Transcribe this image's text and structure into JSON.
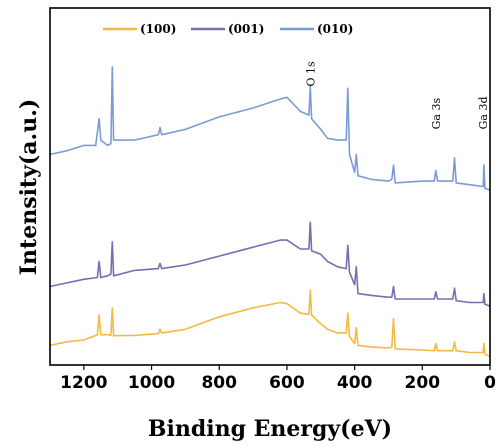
{
  "chart_data": {
    "type": "line",
    "xlabel": "Binding Energy(eV)",
    "ylabel": "Intensity(a.u.)",
    "xlim": [
      1300,
      0
    ],
    "ylim": [
      0,
      100
    ],
    "x_ticks": [
      1200,
      1000,
      800,
      600,
      400,
      200,
      0
    ],
    "y_ticks": [],
    "grid": false,
    "legend": "top-left",
    "annotations": [
      {
        "text": "O 1s",
        "x": 531,
        "y": 78
      },
      {
        "text": "Ga 3s",
        "x": 160,
        "y": 66
      },
      {
        "text": "Ga 3d",
        "x": 20,
        "y": 66
      }
    ],
    "series": [
      {
        "name": "(100)",
        "color": "#F5B942",
        "points": [
          [
            1300,
            5.5
          ],
          [
            1250,
            6.5
          ],
          [
            1200,
            7
          ],
          [
            1160,
            8.5
          ],
          [
            1155,
            14
          ],
          [
            1150,
            8.5
          ],
          [
            1130,
            8.5
          ],
          [
            1120,
            8.3
          ],
          [
            1116,
            16
          ],
          [
            1112,
            8.2
          ],
          [
            1050,
            8.3
          ],
          [
            980,
            8.8
          ],
          [
            975,
            10
          ],
          [
            970,
            9
          ],
          [
            900,
            10
          ],
          [
            800,
            13.5
          ],
          [
            700,
            16
          ],
          [
            620,
            17.5
          ],
          [
            600,
            17.2
          ],
          [
            560,
            14.5
          ],
          [
            535,
            14.2
          ],
          [
            531,
            21
          ],
          [
            527,
            14
          ],
          [
            500,
            11.5
          ],
          [
            480,
            10
          ],
          [
            450,
            9
          ],
          [
            425,
            9
          ],
          [
            420,
            14.5
          ],
          [
            415,
            8
          ],
          [
            400,
            6
          ],
          [
            395,
            10.5
          ],
          [
            390,
            5.5
          ],
          [
            350,
            5
          ],
          [
            300,
            4.8
          ],
          [
            290,
            5
          ],
          [
            285,
            13
          ],
          [
            280,
            4.5
          ],
          [
            200,
            4.2
          ],
          [
            165,
            4
          ],
          [
            160,
            6
          ],
          [
            155,
            4
          ],
          [
            110,
            4
          ],
          [
            105,
            6.5
          ],
          [
            100,
            4
          ],
          [
            60,
            3.5
          ],
          [
            20,
            3.5
          ],
          [
            18,
            6
          ],
          [
            15,
            3
          ],
          [
            0,
            2.5
          ]
        ]
      },
      {
        "name": "(001)",
        "color": "#7B6BB0",
        "points": [
          [
            1300,
            22
          ],
          [
            1250,
            23
          ],
          [
            1200,
            24
          ],
          [
            1160,
            24.5
          ],
          [
            1155,
            29
          ],
          [
            1150,
            24.5
          ],
          [
            1130,
            25
          ],
          [
            1120,
            25.5
          ],
          [
            1116,
            34.5
          ],
          [
            1112,
            25
          ],
          [
            1050,
            26.5
          ],
          [
            980,
            27
          ],
          [
            975,
            28.5
          ],
          [
            970,
            27
          ],
          [
            900,
            28
          ],
          [
            800,
            30.5
          ],
          [
            700,
            33
          ],
          [
            620,
            35
          ],
          [
            600,
            35
          ],
          [
            560,
            32.5
          ],
          [
            535,
            32.5
          ],
          [
            531,
            40
          ],
          [
            527,
            32
          ],
          [
            500,
            31
          ],
          [
            480,
            29
          ],
          [
            450,
            27.5
          ],
          [
            425,
            27
          ],
          [
            420,
            33.5
          ],
          [
            415,
            26
          ],
          [
            400,
            22.5
          ],
          [
            395,
            27.5
          ],
          [
            390,
            20
          ],
          [
            350,
            19.5
          ],
          [
            300,
            19
          ],
          [
            290,
            19
          ],
          [
            285,
            22
          ],
          [
            280,
            18.5
          ],
          [
            200,
            18.5
          ],
          [
            165,
            18.5
          ],
          [
            160,
            20.5
          ],
          [
            155,
            18.5
          ],
          [
            110,
            18.5
          ],
          [
            105,
            21.5
          ],
          [
            100,
            18
          ],
          [
            60,
            17.5
          ],
          [
            20,
            17.5
          ],
          [
            18,
            20
          ],
          [
            15,
            17
          ],
          [
            0,
            16.5
          ]
        ]
      },
      {
        "name": "(010)",
        "color": "#7B9CD3",
        "points": [
          [
            1300,
            59
          ],
          [
            1250,
            60
          ],
          [
            1200,
            61.5
          ],
          [
            1165,
            61.5
          ],
          [
            1155,
            69
          ],
          [
            1150,
            63
          ],
          [
            1130,
            61.5
          ],
          [
            1120,
            62
          ],
          [
            1116,
            83.5
          ],
          [
            1112,
            63
          ],
          [
            1050,
            63
          ],
          [
            980,
            64.5
          ],
          [
            975,
            66.5
          ],
          [
            970,
            64.5
          ],
          [
            900,
            66
          ],
          [
            800,
            69.5
          ],
          [
            700,
            72
          ],
          [
            620,
            74.5
          ],
          [
            600,
            75
          ],
          [
            560,
            71
          ],
          [
            535,
            70
          ],
          [
            531,
            78
          ],
          [
            527,
            69
          ],
          [
            500,
            66
          ],
          [
            480,
            63.5
          ],
          [
            450,
            63
          ],
          [
            425,
            63
          ],
          [
            420,
            77.5
          ],
          [
            415,
            59
          ],
          [
            400,
            54
          ],
          [
            395,
            59
          ],
          [
            390,
            53
          ],
          [
            350,
            52
          ],
          [
            300,
            51.5
          ],
          [
            290,
            52
          ],
          [
            285,
            56
          ],
          [
            280,
            51
          ],
          [
            200,
            51.5
          ],
          [
            165,
            51.5
          ],
          [
            160,
            54.5
          ],
          [
            155,
            51.5
          ],
          [
            110,
            51.5
          ],
          [
            105,
            58
          ],
          [
            100,
            51
          ],
          [
            60,
            50.5
          ],
          [
            20,
            50
          ],
          [
            18,
            56
          ],
          [
            15,
            49.5
          ],
          [
            0,
            49
          ]
        ]
      }
    ]
  }
}
